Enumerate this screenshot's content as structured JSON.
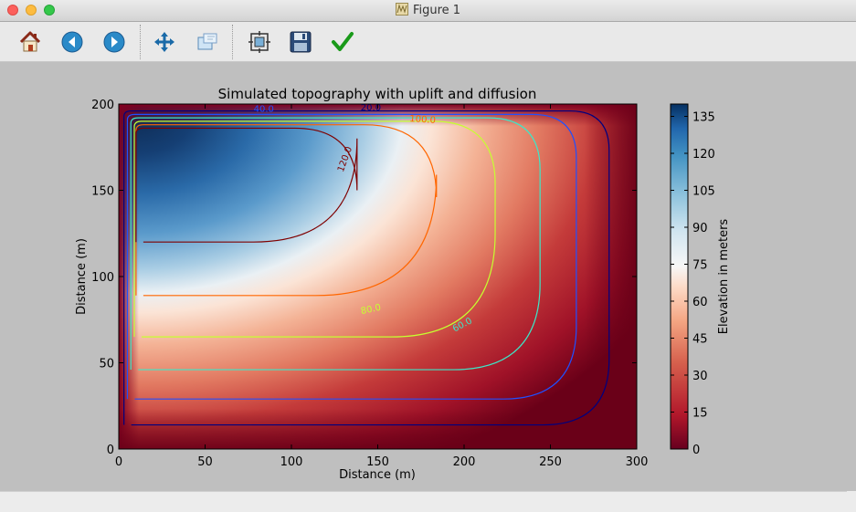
{
  "window": {
    "title": "Figure 1",
    "close_color": "#fc605c",
    "minimize_color": "#fdbc40",
    "zoom_color": "#34c84a"
  },
  "toolbar": {
    "buttons": [
      {
        "name": "home-button",
        "icon": "home-icon"
      },
      {
        "name": "back-button",
        "icon": "arrow-left-icon"
      },
      {
        "name": "forward-button",
        "icon": "arrow-right-icon"
      },
      {
        "name": "pan-button",
        "icon": "move-icon"
      },
      {
        "name": "zoom-button",
        "icon": "zoom-rect-icon"
      },
      {
        "name": "subplots-button",
        "icon": "subplots-icon"
      },
      {
        "name": "save-button",
        "icon": "floppy-icon"
      },
      {
        "name": "edit-button",
        "icon": "checkmark-icon"
      }
    ]
  },
  "chart_data": {
    "type": "heatmap",
    "title": "Simulated topography with uplift and diffusion",
    "xlabel": "Distance (m)",
    "ylabel": "Distance (m)",
    "xlim": [
      0,
      300
    ],
    "ylim": [
      0,
      200
    ],
    "xticks": [
      "0",
      "50",
      "100",
      "150",
      "200",
      "250",
      "300"
    ],
    "yticks": [
      "0",
      "50",
      "100",
      "150",
      "200"
    ],
    "colormap": "RdBu",
    "colorbar": {
      "label": "Elevation in meters",
      "range": [
        0,
        140
      ],
      "ticks": [
        "0",
        "15",
        "30",
        "45",
        "60",
        "75",
        "90",
        "105",
        "120",
        "135"
      ]
    },
    "contours": [
      {
        "level": 20,
        "label": "20.0",
        "color": "#00007f"
      },
      {
        "level": 40,
        "label": "40.0",
        "color": "#2050ff"
      },
      {
        "level": 60,
        "label": "60.0",
        "color": "#3ce8c8"
      },
      {
        "level": 80,
        "label": "80.0",
        "color": "#c6ff30"
      },
      {
        "level": 100,
        "label": "100.0",
        "color": "#ff6600"
      },
      {
        "level": 120,
        "label": "120.0",
        "color": "#7f0000"
      }
    ],
    "contour_labels_visible": [
      "40.0",
      "20.0",
      "100.0",
      "120.0",
      "80.0",
      "60.0"
    ],
    "peak_value": 138,
    "peak_location": [
      10,
      190
    ],
    "grid": false
  }
}
